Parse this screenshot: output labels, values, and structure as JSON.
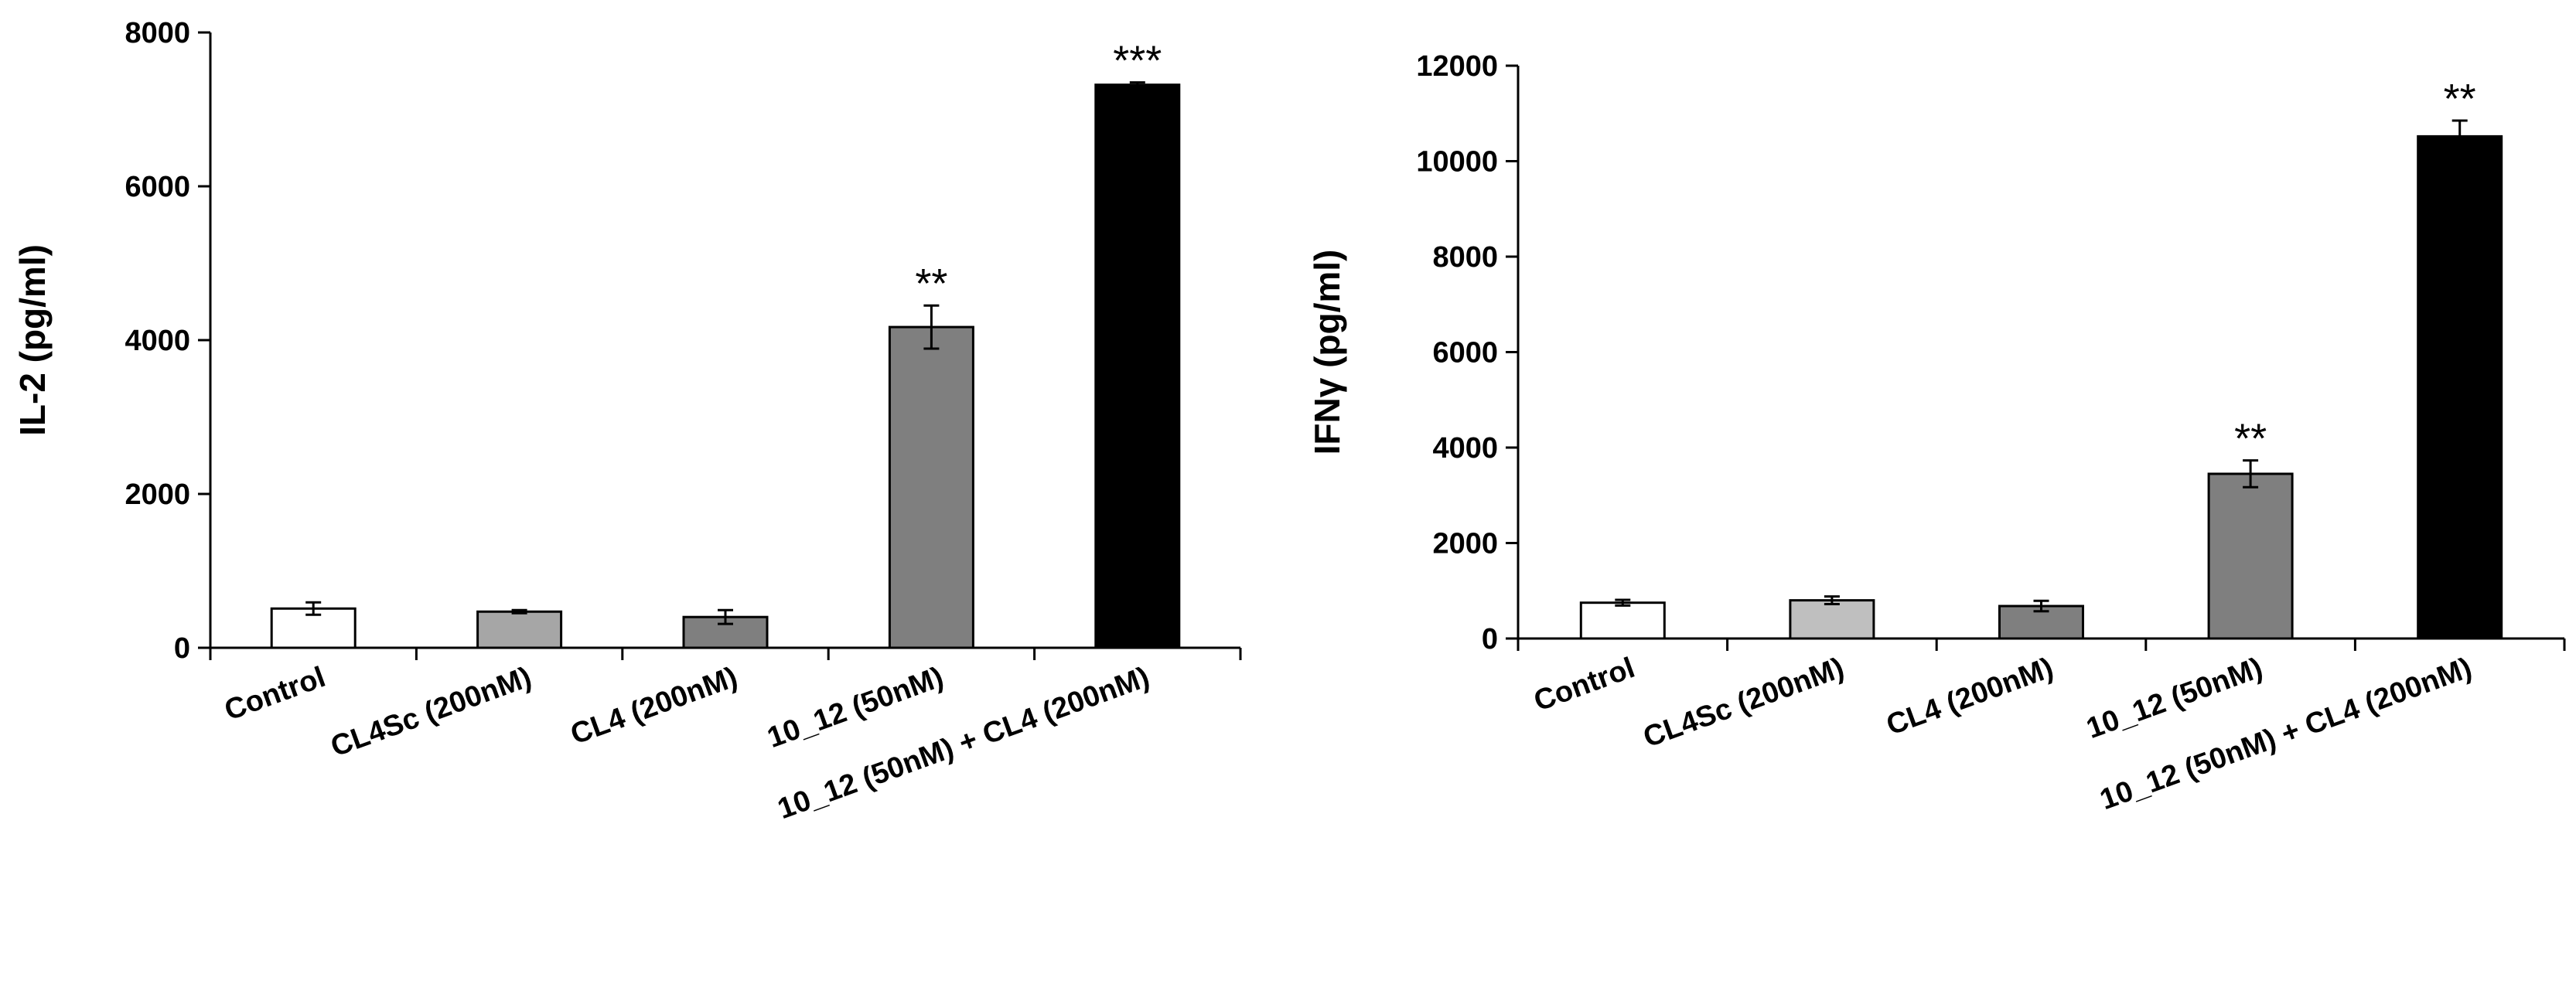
{
  "chart_data": [
    {
      "type": "bar",
      "title": "",
      "xlabel": "",
      "ylabel": "IL-2 (pg/ml)",
      "ylim": [
        0,
        8000
      ],
      "yticks": [
        "0",
        "2000",
        "4000",
        "6000",
        "8000"
      ],
      "categories": [
        "Control",
        "CL4Sc (200nM)",
        "CL4 (200nM)",
        "10_12 (50nM)",
        "10_12 (50nM) + CL4 (200nM)"
      ],
      "values": [
        510,
        470,
        400,
        4170,
        7320
      ],
      "errors": [
        80,
        20,
        90,
        280,
        30
      ],
      "significance": [
        "",
        "",
        "",
        "**",
        "***"
      ],
      "bar_colors": [
        "#ffffff",
        "#a6a6a6",
        "#7f7f7f",
        "#7f7f7f",
        "#000000"
      ],
      "grid": false
    },
    {
      "type": "bar",
      "title": "",
      "xlabel": "",
      "ylabel": "IFNγ (pg/ml)",
      "ylim": [
        0,
        12000
      ],
      "yticks": [
        "0",
        "2000",
        "4000",
        "6000",
        "8000",
        "10000",
        "12000"
      ],
      "categories": [
        "Control",
        "CL4Sc (200nM)",
        "CL4 (200nM)",
        "10_12 (50nM)",
        "10_12 (50nM) + CL4 (200nM)"
      ],
      "values": [
        750,
        800,
        680,
        3450,
        10520
      ],
      "errors": [
        60,
        80,
        110,
        280,
        330
      ],
      "significance": [
        "",
        "",
        "",
        "**",
        "**"
      ],
      "bar_colors": [
        "#ffffff",
        "#bfbfbf",
        "#7f7f7f",
        "#7f7f7f",
        "#000000"
      ],
      "grid": false
    }
  ]
}
